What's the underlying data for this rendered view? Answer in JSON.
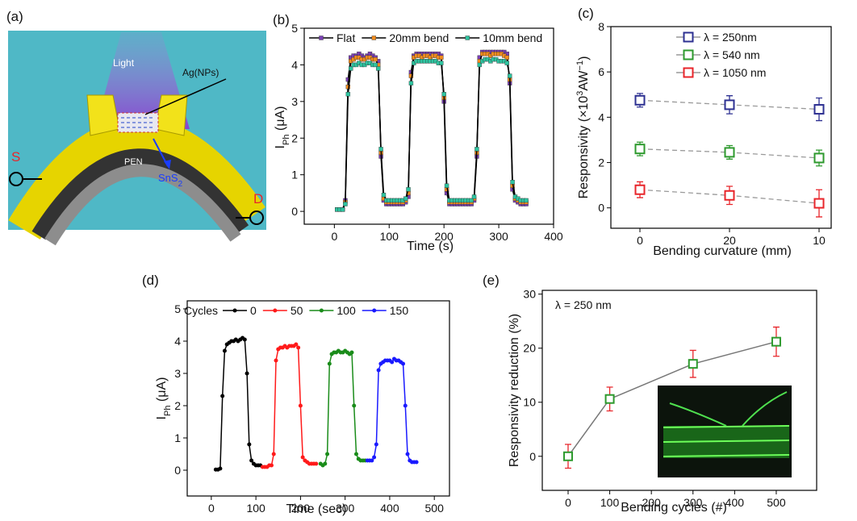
{
  "schematic": {
    "panel_label": "(a)",
    "light": "Light",
    "particles": "Ag(NPs)",
    "substrate": "PEN",
    "channel": [
      "SnS",
      "2"
    ],
    "source": "S",
    "drain": "D"
  },
  "chart_data": [
    {
      "type": "line",
      "panel_label": "(b)",
      "xlabel": "Time (s)",
      "ylabel": [
        [
          "I"
        ],
        [
          "Ph",
          "sub"
        ],
        [
          " (μA)"
        ]
      ],
      "xlim": [
        -55,
        400
      ],
      "xticks": [
        0,
        100,
        200,
        300,
        400
      ],
      "ylim": [
        -0.35,
        5
      ],
      "yticks": [
        0,
        1,
        2,
        3,
        4,
        5
      ],
      "marker": "square",
      "line_color": "#000000",
      "x": [
        5,
        10,
        15,
        20,
        25,
        30,
        35,
        40,
        45,
        50,
        55,
        60,
        65,
        70,
        75,
        80,
        85,
        90,
        95,
        100,
        105,
        110,
        115,
        120,
        125,
        130,
        135,
        140,
        145,
        150,
        155,
        160,
        165,
        170,
        175,
        180,
        185,
        190,
        195,
        200,
        205,
        210,
        215,
        220,
        225,
        230,
        235,
        240,
        245,
        250,
        255,
        260,
        265,
        270,
        275,
        280,
        285,
        290,
        295,
        300,
        305,
        310,
        315,
        320,
        325,
        330,
        335,
        340,
        345,
        350
      ],
      "series": [
        {
          "name": "Flat",
          "color": "#7b3fb5",
          "values": [
            0.05,
            0.05,
            0.05,
            0.3,
            3.6,
            4.2,
            4.25,
            4.25,
            4.3,
            4.25,
            4.2,
            4.25,
            4.3,
            4.25,
            4.2,
            4.1,
            1.5,
            0.3,
            0.2,
            0.2,
            0.2,
            0.2,
            0.2,
            0.2,
            0.2,
            0.25,
            0.4,
            3.8,
            4.25,
            4.3,
            4.3,
            4.3,
            4.3,
            4.3,
            4.3,
            4.3,
            4.3,
            4.3,
            4.25,
            3.0,
            0.5,
            0.2,
            0.2,
            0.2,
            0.2,
            0.2,
            0.2,
            0.2,
            0.2,
            0.2,
            0.3,
            1.5,
            4.2,
            4.35,
            4.35,
            4.35,
            4.35,
            4.35,
            4.35,
            4.35,
            4.35,
            4.35,
            4.3,
            3.5,
            0.6,
            0.3,
            0.25,
            0.2,
            0.2,
            0.2
          ]
        },
        {
          "name": "20mm bend",
          "color": "#f28c1e",
          "values": [
            0.05,
            0.05,
            0.05,
            0.25,
            3.4,
            4.1,
            4.15,
            4.2,
            4.2,
            4.15,
            4.15,
            4.2,
            4.2,
            4.15,
            4.15,
            4.0,
            1.6,
            0.35,
            0.25,
            0.25,
            0.25,
            0.25,
            0.25,
            0.25,
            0.25,
            0.3,
            0.5,
            3.7,
            4.2,
            4.25,
            4.25,
            4.2,
            4.25,
            4.25,
            4.2,
            4.25,
            4.25,
            4.2,
            4.2,
            3.1,
            0.6,
            0.25,
            0.25,
            0.25,
            0.25,
            0.25,
            0.25,
            0.25,
            0.25,
            0.25,
            0.35,
            1.6,
            4.1,
            4.3,
            4.3,
            4.3,
            4.25,
            4.3,
            4.3,
            4.3,
            4.3,
            4.25,
            4.2,
            3.6,
            0.7,
            0.35,
            0.3,
            0.25,
            0.25,
            0.25
          ]
        },
        {
          "name": "10mm bend",
          "color": "#2ec4a0",
          "values": [
            0.05,
            0.05,
            0.05,
            0.2,
            3.2,
            3.9,
            4.0,
            4.0,
            4.05,
            4.0,
            4.0,
            4.05,
            4.05,
            4.0,
            4.0,
            3.9,
            1.7,
            0.45,
            0.3,
            0.3,
            0.3,
            0.3,
            0.3,
            0.3,
            0.3,
            0.35,
            0.6,
            3.5,
            4.05,
            4.1,
            4.1,
            4.1,
            4.1,
            4.1,
            4.1,
            4.1,
            4.1,
            4.05,
            4.05,
            3.2,
            0.7,
            0.3,
            0.3,
            0.3,
            0.3,
            0.3,
            0.3,
            0.3,
            0.3,
            0.3,
            0.4,
            1.7,
            4.0,
            4.1,
            4.15,
            4.15,
            4.1,
            4.15,
            4.15,
            4.1,
            4.1,
            4.1,
            4.05,
            3.7,
            0.8,
            0.4,
            0.35,
            0.3,
            0.3,
            0.3
          ]
        }
      ]
    },
    {
      "type": "errorbar",
      "panel_label": "(c)",
      "xlabel": "Bending curvature (mm)",
      "ylabel": [
        [
          "Responsivity (×10"
        ],
        [
          "3",
          "super"
        ],
        [
          "AW"
        ],
        [
          "−1",
          "super"
        ],
        [
          ")"
        ]
      ],
      "categories": [
        "0",
        "20",
        "10"
      ],
      "ylim": [
        -0.9,
        8
      ],
      "yticks": [
        0,
        2,
        4,
        6,
        8
      ],
      "marker": "square-hollow",
      "line_color": "#999999",
      "line_style": "dashed",
      "series": [
        {
          "name": "λ = 250nm",
          "color": "#2e3192",
          "values": [
            4.75,
            4.55,
            4.35
          ],
          "errors": [
            0.3,
            0.4,
            0.5
          ]
        },
        {
          "name": "λ = 540 nm",
          "color": "#2e9a2e",
          "values": [
            2.6,
            2.45,
            2.2
          ],
          "errors": [
            0.3,
            0.3,
            0.35
          ]
        },
        {
          "name": "λ = 1050 nm",
          "color": "#e8262b",
          "values": [
            0.8,
            0.55,
            0.2
          ],
          "errors": [
            0.35,
            0.4,
            0.6
          ]
        }
      ]
    },
    {
      "type": "line",
      "panel_label": "(d)",
      "xlabel": "Time (sec)",
      "ylabel": [
        [
          "I"
        ],
        [
          "Ph",
          "sub"
        ],
        [
          " (μA)"
        ]
      ],
      "legend_title": "Cycles",
      "xlim": [
        -54,
        534
      ],
      "xticks": [
        0,
        100,
        200,
        300,
        400,
        500
      ],
      "ylim": [
        -0.8,
        5.25
      ],
      "yticks": [
        0,
        1,
        2,
        3,
        4,
        5
      ],
      "marker": "circle",
      "series": [
        {
          "name": "0",
          "color": "#000000",
          "x": [
            10,
            15,
            20,
            25,
            30,
            35,
            40,
            45,
            50,
            55,
            60,
            65,
            70,
            75,
            80,
            85,
            90,
            95,
            100,
            105,
            110
          ],
          "values": [
            0.02,
            0.02,
            0.05,
            2.3,
            3.7,
            3.9,
            3.95,
            4.0,
            4.0,
            4.05,
            4.0,
            4.05,
            4.1,
            4.05,
            3.0,
            0.8,
            0.3,
            0.2,
            0.15,
            0.15,
            0.15
          ]
        },
        {
          "name": "50",
          "color": "#ff1a1a",
          "x": [
            115,
            120,
            125,
            130,
            135,
            140,
            145,
            150,
            155,
            160,
            165,
            170,
            175,
            180,
            185,
            190,
            195,
            200,
            205,
            210,
            215,
            220,
            225,
            230,
            235
          ],
          "values": [
            0.1,
            0.1,
            0.1,
            0.15,
            0.15,
            0.5,
            3.4,
            3.75,
            3.8,
            3.8,
            3.85,
            3.8,
            3.85,
            3.85,
            3.85,
            3.9,
            3.8,
            2.0,
            0.4,
            0.3,
            0.25,
            0.2,
            0.2,
            0.2,
            0.2
          ]
        },
        {
          "name": "100",
          "color": "#1a8c1a",
          "x": [
            245,
            250,
            255,
            260,
            265,
            270,
            275,
            280,
            285,
            290,
            295,
            300,
            305,
            310,
            315,
            320,
            325,
            330,
            335,
            340,
            345
          ],
          "values": [
            0.2,
            0.15,
            0.2,
            0.5,
            3.3,
            3.6,
            3.65,
            3.65,
            3.7,
            3.65,
            3.65,
            3.7,
            3.65,
            3.6,
            3.65,
            2.0,
            0.5,
            0.35,
            0.3,
            0.3,
            0.3
          ]
        },
        {
          "name": "150",
          "color": "#1a1aff",
          "x": [
            350,
            355,
            360,
            365,
            370,
            375,
            380,
            385,
            390,
            395,
            400,
            405,
            410,
            415,
            420,
            425,
            430,
            435,
            440,
            445,
            450,
            455,
            460
          ],
          "values": [
            0.3,
            0.3,
            0.3,
            0.4,
            0.8,
            3.1,
            3.3,
            3.35,
            3.4,
            3.4,
            3.4,
            3.35,
            3.45,
            3.4,
            3.4,
            3.35,
            3.3,
            2.0,
            0.5,
            0.3,
            0.25,
            0.25,
            0.25
          ]
        }
      ]
    },
    {
      "type": "errorbar",
      "panel_label": "(e)",
      "xlabel": "Bending cycles (#)",
      "ylabel": [
        [
          "Responsivity reduction (%)"
        ]
      ],
      "annotation": "λ = 250 nm",
      "xlim": [
        -62,
        597
      ],
      "xticks": [
        0,
        100,
        200,
        300,
        400,
        500
      ],
      "ylim": [
        -6.3,
        30.7
      ],
      "yticks": [
        0,
        10,
        20,
        30
      ],
      "marker": "square-hollow",
      "line_color": "#777777",
      "line_style": "solid",
      "series": [
        {
          "color": "#2e9a2e",
          "error_color": "#e8262b",
          "x": [
            0,
            100,
            300,
            500
          ],
          "values": [
            0,
            10.6,
            17.1,
            21.2
          ],
          "errors": [
            2.2,
            2.2,
            2.5,
            2.7
          ]
        }
      ]
    }
  ]
}
